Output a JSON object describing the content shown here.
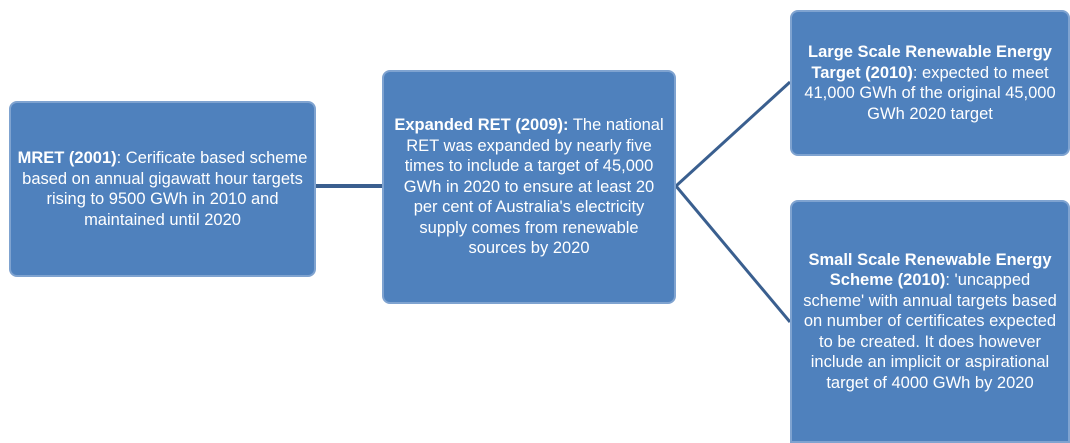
{
  "nodes": [
    {
      "title": "MRET (2001)",
      "text": ": Cerificate based scheme based on annual gigawatt hour targets rising to 9500 GWh in 2010 and maintained until 2020"
    },
    {
      "title": "Expanded RET (2009):",
      "text": " The national RET was expanded by nearly five times to include a target of 45,000 GWh in 2020 to ensure at least 20 per cent of Australia's electricity supply comes from renewable sources by 2020"
    },
    {
      "title": "Large Scale Renewable Energy Target (2010)",
      "text": ": expected to meet 41,000 GWh of the original 45,000 GWh 2020 target"
    },
    {
      "title": "Small Scale Renewable Energy Scheme (2010)",
      "text": ": 'uncapped scheme' with annual targets based on number of certificates expected to be created. It does however include an implicit or aspirational target of 4000 GWh by 2020"
    }
  ]
}
